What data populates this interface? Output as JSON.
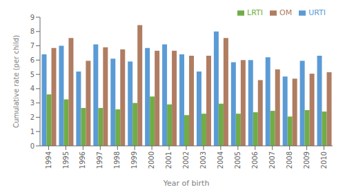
{
  "chart_data": {
    "type": "bar",
    "categories": [
      "1994",
      "1995",
      "1996",
      "1997",
      "1998",
      "1999",
      "2000",
      "2001",
      "2002",
      "2003",
      "2004",
      "2005",
      "2006",
      "2007",
      "2008",
      "2009",
      "2010"
    ],
    "series": [
      {
        "name": "URTI",
        "color": "#5B9BD5",
        "values": [
          6.4,
          7.0,
          5.2,
          7.1,
          6.1,
          5.9,
          6.85,
          7.1,
          6.4,
          5.2,
          8.0,
          5.85,
          6.0,
          6.2,
          4.85,
          5.95,
          6.3
        ]
      },
      {
        "name": "LRTI",
        "color": "#70AD47",
        "values": [
          3.6,
          3.25,
          2.65,
          2.65,
          2.55,
          3.0,
          3.45,
          2.9,
          2.15,
          2.25,
          2.95,
          2.25,
          2.35,
          2.45,
          2.05,
          2.5,
          2.4
        ]
      },
      {
        "name": "OM",
        "color": "#B07D62",
        "values": [
          6.85,
          7.55,
          5.95,
          6.9,
          6.75,
          8.45,
          6.65,
          6.65,
          6.3,
          6.3,
          7.55,
          6.0,
          4.6,
          5.35,
          4.7,
          5.05,
          5.15
        ]
      }
    ],
    "xlabel": "Year of birth",
    "ylabel": "Cumulative rate (per child)",
    "ylim": [
      0,
      9
    ],
    "yticks": [
      0,
      1,
      2,
      3,
      4,
      5,
      6,
      7,
      8,
      9
    ],
    "legend": "upper right",
    "grid": false
  }
}
